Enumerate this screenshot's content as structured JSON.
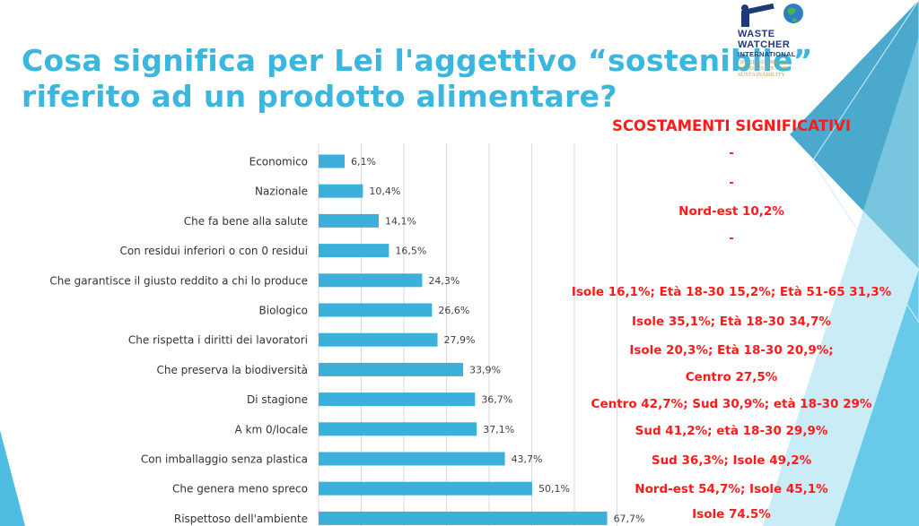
{
  "title": {
    "line1": "Cosa significa per Lei l'aggettivo “sostenibile”",
    "line2": "riferito ad un prodotto alimentare?"
  },
  "logo": {
    "line1": "WASTE",
    "line2": "WATCHER",
    "line3": "INTERNATIONAL",
    "sub1": "OBSERVATORY ON",
    "sub2": "FOOD WASTE AND",
    "sub3": "SUSTAINABILITY",
    "icon": "spyglass-globe-icon"
  },
  "significant": {
    "header": "SCOSTAMENTI SIGNIFICATIVI",
    "rows": [
      "-",
      "-",
      "Nord-est 10,2%",
      "-",
      "Isole 16,1%; Età 18-30 15,2%;  Età 51-65 31,3%",
      "Isole 35,1%; Età 18-30 34,7%",
      "Isole 20,3%; Età 18-30 20,9%;",
      "Centro 27,5%",
      "Centro 42,7%; Sud 30,9%; età 18-30 29%",
      "Sud 41,2%; età 18-30 29,9%",
      "Sud 36,3%; Isole 49,2%",
      "Nord-est 54,7%; Isole 45,1%",
      "Isole 74.5%"
    ]
  },
  "colors": {
    "title": "#3bb6de",
    "bar": "#3ab0da",
    "significant": "#ff1a1a",
    "decor": "#3bb6de"
  },
  "chart_data": {
    "type": "bar",
    "orientation": "horizontal",
    "categories": [
      "Economico",
      "Nazionale",
      "Che fa bene alla salute",
      "Con residui inferiori o con 0 residui",
      "Che garantisce il giusto reddito a chi lo produce",
      "Biologico",
      "Che rispetta i diritti dei lavoratori",
      "Che preserva la biodiversità",
      "Di stagione",
      "A km 0/locale",
      "Con imballaggio senza plastica",
      "Che genera meno spreco",
      "Rispettoso dell'ambiente"
    ],
    "values": [
      6.1,
      10.4,
      14.1,
      16.5,
      24.3,
      26.6,
      27.9,
      33.9,
      36.7,
      37.1,
      43.7,
      50.1,
      67.7
    ],
    "data_labels": [
      "6,1%",
      "10,4%",
      "14,1%",
      "16,5%",
      "24,3%",
      "26,6%",
      "27,9%",
      "33,9%",
      "36,7%",
      "37,1%",
      "43,7%",
      "50,1%",
      "67,7%"
    ],
    "xlim": [
      0,
      100
    ],
    "grid": true,
    "title": "",
    "xlabel": "",
    "ylabel": ""
  }
}
